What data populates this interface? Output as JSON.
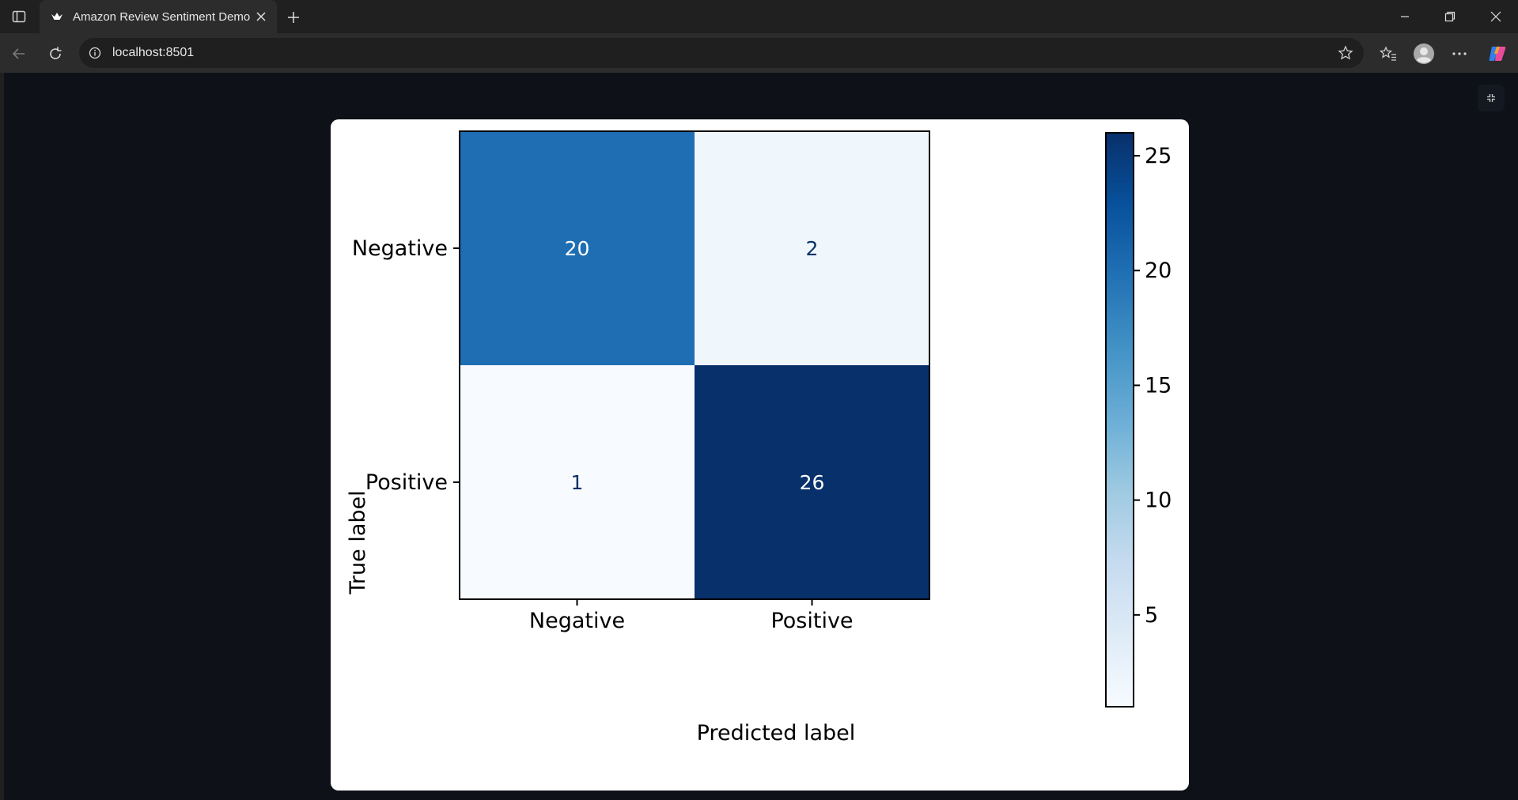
{
  "browser": {
    "tab_title": "Amazon Review Sentiment Demo",
    "url": "localhost:8501",
    "icons": {
      "sidebar": "sidebar-toggle-icon",
      "favicon": "streamlit-crown-icon",
      "close": "close-icon",
      "new_tab": "plus-icon",
      "back": "arrow-left-icon",
      "reload": "reload-icon",
      "info": "info-icon",
      "favorite": "star-icon",
      "favorites": "favorites-icon",
      "profile": "profile-icon",
      "more": "ellipsis-icon",
      "copilot": "copilot-icon"
    }
  },
  "chart_data": {
    "type": "heatmap",
    "title": "",
    "xlabel": "Predicted label",
    "ylabel": "True label",
    "x_categories": [
      "Negative",
      "Positive"
    ],
    "y_categories": [
      "Negative",
      "Positive"
    ],
    "values": [
      [
        20,
        2
      ],
      [
        1,
        26
      ]
    ],
    "colormap": "Blues",
    "colorbar": {
      "min": 1,
      "max": 26,
      "ticks": [
        5,
        10,
        15,
        20,
        25
      ]
    },
    "colors": {
      "text_dark_bg": "#ffffff",
      "text_light_bg": "#08306b"
    }
  }
}
